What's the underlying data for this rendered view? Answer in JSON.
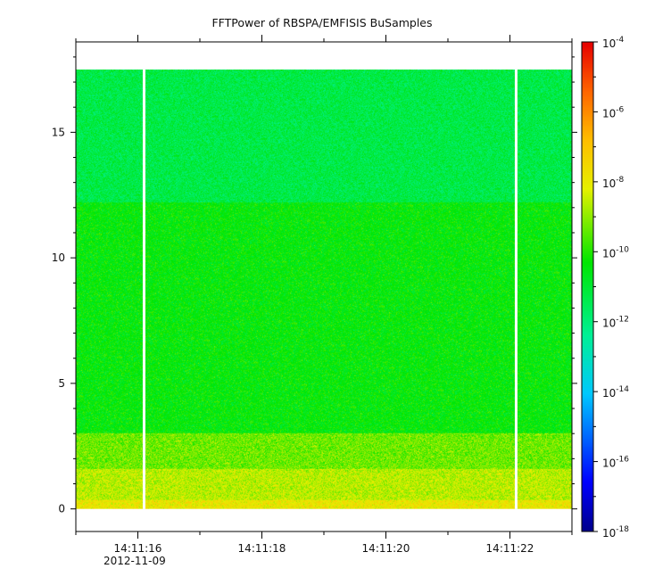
{
  "chart_data": {
    "type": "heatmap",
    "title": "FFTPower of RBSPA/EMFISIS  BuSamples",
    "xlabel": "",
    "ylabel": "",
    "x_axis": {
      "kind": "time",
      "date_label": "2012-11-09",
      "range": [
        "14:11:15.0",
        "14:11:23.0"
      ],
      "labeled_ticks": [
        "14:11:16",
        "14:11:18",
        "14:11:20",
        "14:11:22"
      ],
      "minor_tick_interval_s": 1
    },
    "y_axis": {
      "range": [
        -0.9,
        18.6
      ],
      "ticks": [
        0,
        5,
        10,
        15
      ]
    },
    "colorbar": {
      "scale": "log",
      "range": [
        1e-18,
        0.0001
      ],
      "colormap": "rainbow",
      "tick_bases": [
        "10",
        "10",
        "10",
        "10",
        "10",
        "10",
        "10",
        "10"
      ],
      "tick_exponents": [
        "-4",
        "-6",
        "-8",
        "-10",
        "-12",
        "-14",
        "-16",
        "-18"
      ],
      "tick_values": [
        -4,
        -6,
        -8,
        -10,
        -12,
        -14,
        -16,
        -18
      ]
    },
    "data_extent": {
      "time": [
        "14:11:15.0",
        "14:11:23.0"
      ],
      "y": [
        0,
        17.5
      ]
    },
    "data_gaps": [
      "14:11:16.1",
      "14:11:22.1"
    ],
    "bands": [
      {
        "y": [
          0,
          0.35
        ],
        "log_power": -7.9
      },
      {
        "y": [
          0.35,
          1.6
        ],
        "log_power": -8.6
      },
      {
        "y": [
          1.6,
          3.0
        ],
        "log_power": -9.3
      },
      {
        "y": [
          3.0,
          12.2
        ],
        "log_power": -10.4
      },
      {
        "y": [
          12.2,
          17.5
        ],
        "log_power": -11.3
      }
    ],
    "grid": false,
    "legend": "none"
  }
}
